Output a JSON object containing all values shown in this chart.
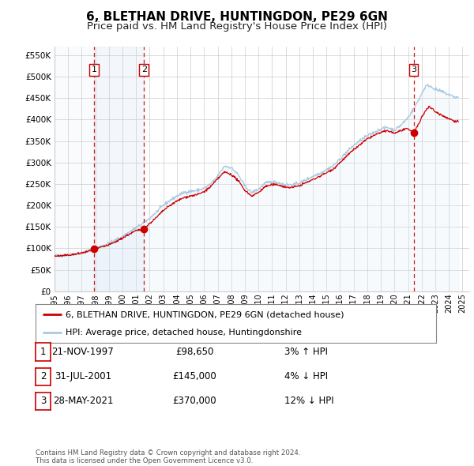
{
  "title": "6, BLETHAN DRIVE, HUNTINGDON, PE29 6GN",
  "subtitle": "Price paid vs. HM Land Registry's House Price Index (HPI)",
  "title_fontsize": 11,
  "subtitle_fontsize": 9.5,
  "xlim": [
    1995.0,
    2025.5
  ],
  "ylim": [
    0,
    570000
  ],
  "yticks": [
    0,
    50000,
    100000,
    150000,
    200000,
    250000,
    300000,
    350000,
    400000,
    450000,
    500000,
    550000
  ],
  "xticks": [
    1995,
    1996,
    1997,
    1998,
    1999,
    2000,
    2001,
    2002,
    2003,
    2004,
    2005,
    2006,
    2007,
    2008,
    2009,
    2010,
    2011,
    2012,
    2013,
    2014,
    2015,
    2016,
    2017,
    2018,
    2019,
    2020,
    2021,
    2022,
    2023,
    2024,
    2025
  ],
  "background_color": "#ffffff",
  "plot_bg_color": "#ffffff",
  "grid_color": "#cccccc",
  "red_line_color": "#cc0000",
  "blue_line_color": "#aac8e0",
  "blue_fill_color": "#ddeef8",
  "sale_marker_color": "#cc0000",
  "vline_color": "#cc0000",
  "shade_color": "#dde8f5",
  "sale_points": [
    {
      "year": 1997.896,
      "price": 98650,
      "label": "1"
    },
    {
      "year": 2001.581,
      "price": 145000,
      "label": "2"
    },
    {
      "year": 2021.412,
      "price": 370000,
      "label": "3"
    }
  ],
  "legend_red_label": "6, BLETHAN DRIVE, HUNTINGDON, PE29 6GN (detached house)",
  "legend_blue_label": "HPI: Average price, detached house, Huntingdonshire",
  "table_rows": [
    {
      "num": "1",
      "date": "21-NOV-1997",
      "price": "£98,650",
      "pct": "3% ↑ HPI"
    },
    {
      "num": "2",
      "date": "31-JUL-2001",
      "price": "£145,000",
      "pct": "4% ↓ HPI"
    },
    {
      "num": "3",
      "date": "28-MAY-2021",
      "price": "£370,000",
      "pct": "12% ↓ HPI"
    }
  ],
  "footer_line1": "Contains HM Land Registry data © Crown copyright and database right 2024.",
  "footer_line2": "This data is licensed under the Open Government Licence v3.0."
}
